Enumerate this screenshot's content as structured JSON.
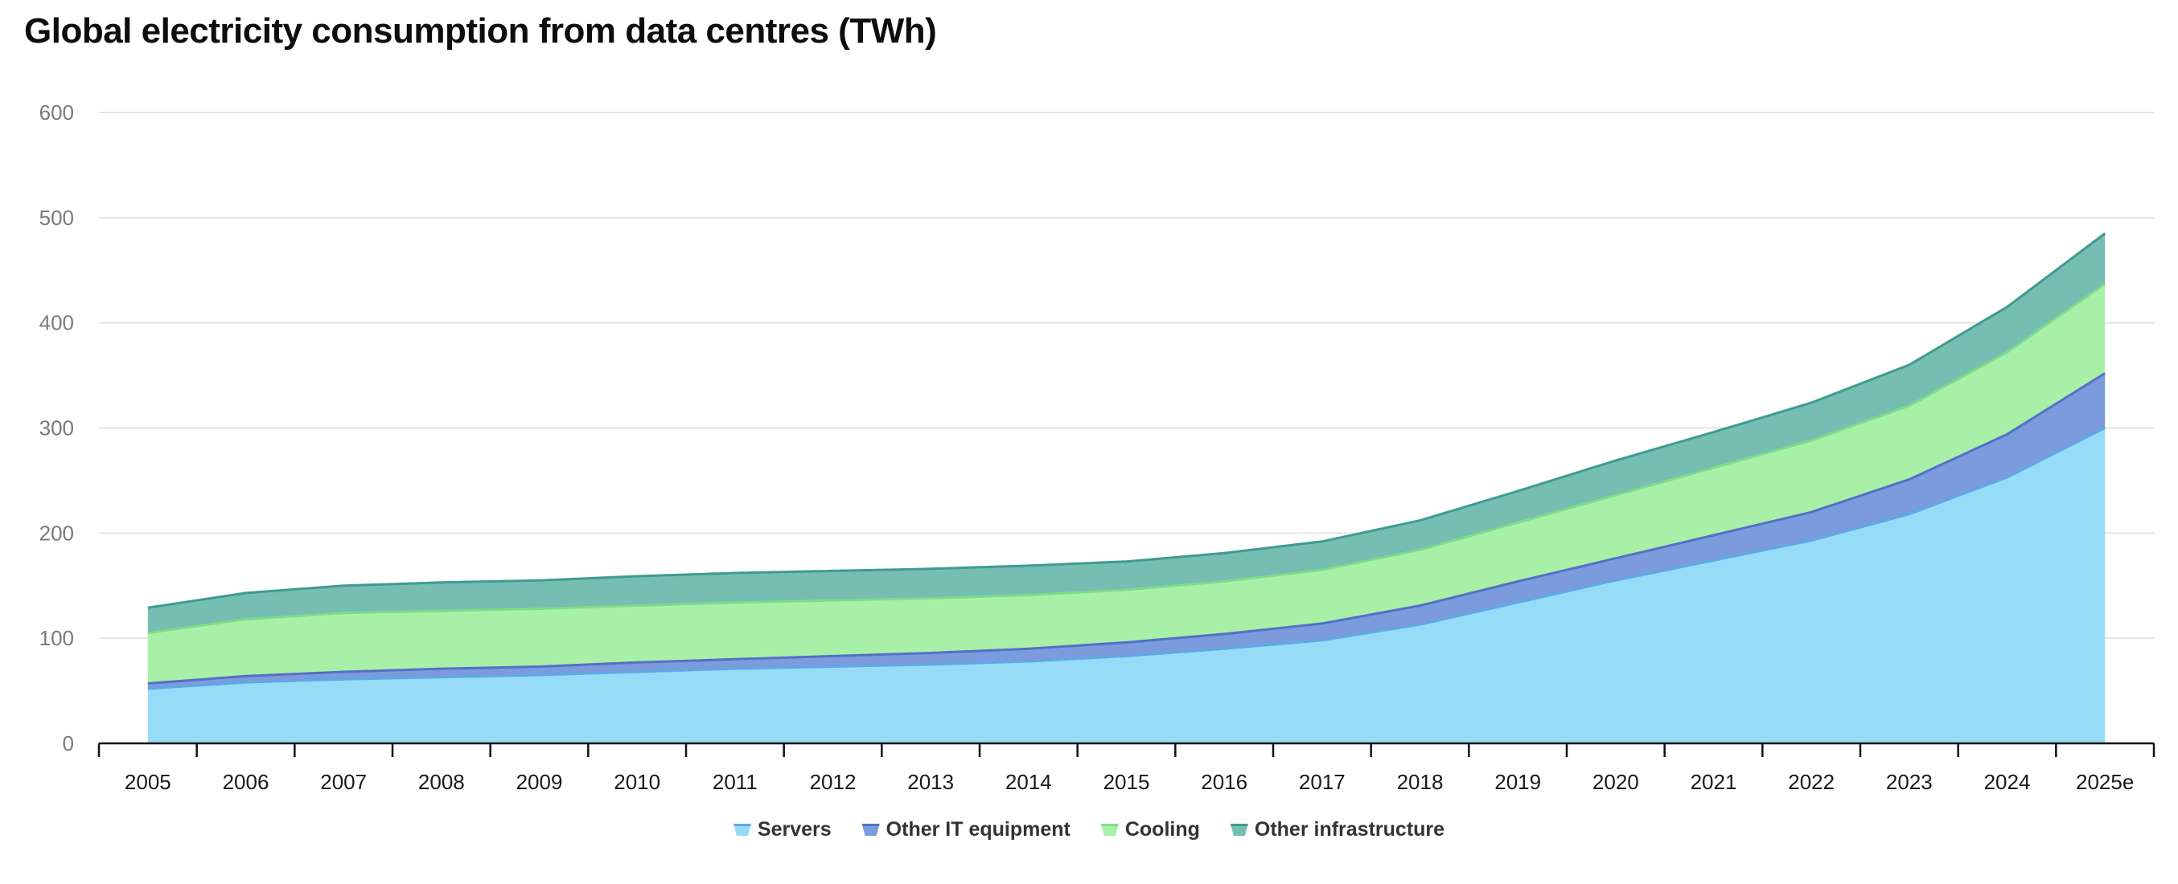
{
  "chart_data": {
    "type": "area",
    "stacked": true,
    "title": "Global electricity consumption from data centres (TWh)",
    "xlabel": "",
    "ylabel": "",
    "x": [
      "2005",
      "2006",
      "2007",
      "2008",
      "2009",
      "2010",
      "2011",
      "2012",
      "2013",
      "2014",
      "2015",
      "2016",
      "2017",
      "2018",
      "2019",
      "2020",
      "2021",
      "2022",
      "2023",
      "2024",
      "2025e"
    ],
    "ylim": [
      0,
      600
    ],
    "yticks": [
      0,
      100,
      200,
      300,
      400,
      500,
      600
    ],
    "grid": true,
    "legend_position": "bottom-center",
    "series": [
      {
        "name": "Servers",
        "color": "#97dcf7",
        "line_color": "#5fa8e6",
        "values": [
          52,
          58,
          61,
          63,
          65,
          68,
          71,
          73,
          75,
          78,
          83,
          90,
          98,
          113,
          134,
          155,
          174,
          193,
          218,
          253,
          300
        ]
      },
      {
        "name": "Other IT equipment",
        "color": "#7b9bdc",
        "line_color": "#5470c6",
        "values": [
          5,
          6,
          7,
          8,
          8,
          9,
          9,
          10,
          11,
          12,
          13,
          14,
          16,
          18,
          20,
          21,
          24,
          27,
          33,
          41,
          52
        ]
      },
      {
        "name": "Cooling",
        "color": "#a8f0a8",
        "line_color": "#7fdc8a",
        "values": [
          48,
          54,
          56,
          55,
          55,
          54,
          54,
          53,
          52,
          51,
          50,
          50,
          51,
          53,
          56,
          60,
          64,
          68,
          70,
          78,
          85
        ]
      },
      {
        "name": "Other infrastructure",
        "color": "#76bdb2",
        "line_color": "#3e9c8f",
        "values": [
          24,
          25,
          26,
          27,
          27,
          28,
          28,
          28,
          28,
          28,
          27,
          27,
          27,
          28,
          30,
          33,
          34,
          36,
          39,
          43,
          48
        ]
      }
    ]
  }
}
